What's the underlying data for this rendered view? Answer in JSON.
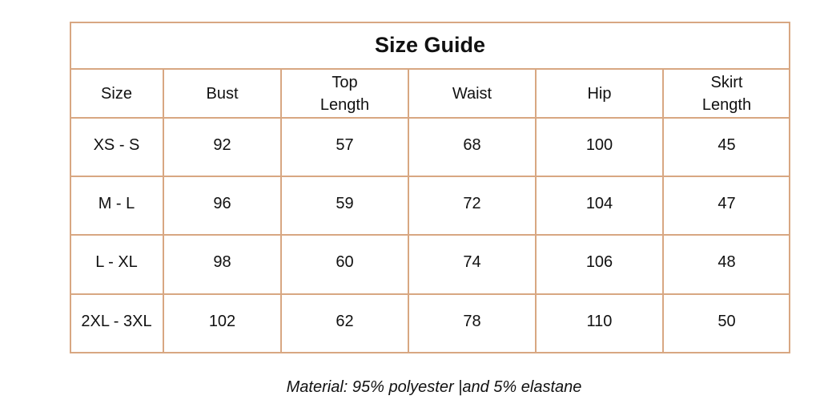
{
  "title": "Size Guide",
  "headers": [
    "Size",
    "Bust",
    "Top\nLength",
    "Waist",
    "Hip",
    "Skirt\nLength"
  ],
  "rows": [
    [
      "XS - S",
      "92",
      "57",
      "68",
      "100",
      "45"
    ],
    [
      "M - L",
      "96",
      "59",
      "72",
      "104",
      "47"
    ],
    [
      "L - XL",
      "98",
      "60",
      "74",
      "106",
      "48"
    ],
    [
      "2XL - 3XL",
      "102",
      "62",
      "78",
      "110",
      "50"
    ]
  ],
  "note": "Material: 95% polyester |and 5% elastane",
  "colors": {
    "border": "#d8a782",
    "text": "#111111"
  }
}
